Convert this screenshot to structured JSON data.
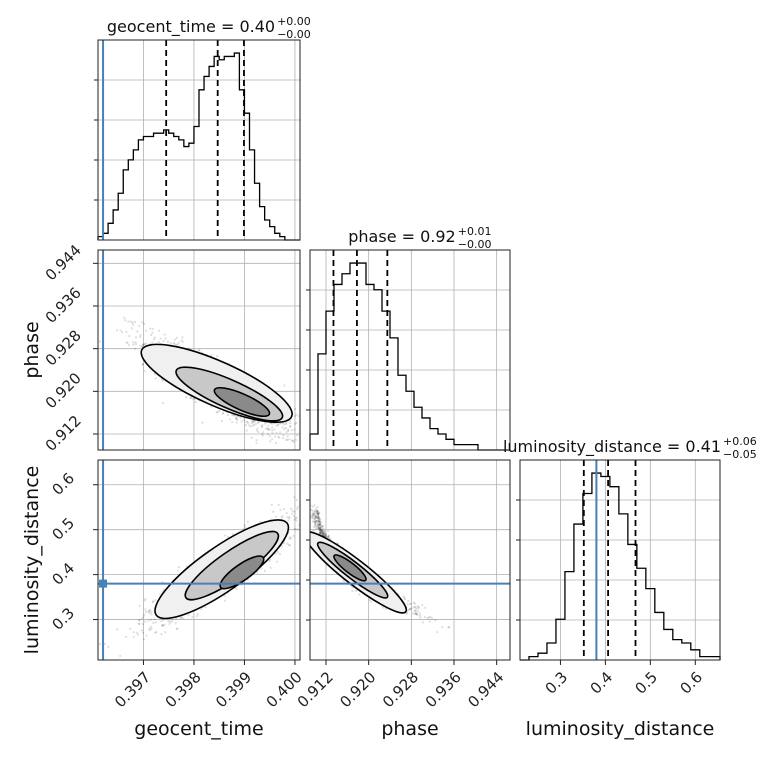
{
  "chart_data": {
    "type": "corner",
    "params": [
      {
        "name": "geocent_time",
        "range": [
          0.3961,
          0.4001
        ],
        "ticks": [
          0.397,
          0.398,
          0.399,
          0.4
        ],
        "tick_labels": [
          "0.397",
          "0.398",
          "0.399",
          "0.400"
        ],
        "truth": 0.3962,
        "quantiles": [
          0.39745,
          0.39847,
          0.39899
        ],
        "title_main": "geocent_time = 0.40",
        "title_plus": "+0.00",
        "title_minus": "−0.00",
        "hist": {
          "bin_edges": [
            0.3961,
            0.3962,
            0.3963,
            0.3964,
            0.3965,
            0.3966,
            0.3967,
            0.3968,
            0.3969,
            0.397,
            0.3971,
            0.3972,
            0.3973,
            0.3974,
            0.3975,
            0.3976,
            0.3977,
            0.3978,
            0.3979,
            0.398,
            0.3981,
            0.3982,
            0.3983,
            0.3984,
            0.3985,
            0.3986,
            0.3987,
            0.3988,
            0.3989,
            0.399,
            0.3991,
            0.3992,
            0.3993,
            0.3994,
            0.3995,
            0.3996,
            0.3997,
            0.3998,
            0.3999,
            0.4,
            0.4001
          ],
          "counts": [
            1,
            2,
            5,
            9,
            14,
            21,
            24,
            27,
            30,
            31,
            31,
            32,
            32,
            33,
            32,
            31,
            30,
            28,
            29,
            34,
            45,
            49,
            52,
            55,
            54,
            55,
            55,
            56,
            45,
            38,
            27,
            17,
            10,
            6,
            4,
            2,
            1,
            0,
            0,
            0
          ]
        }
      },
      {
        "name": "phase",
        "range": [
          0.909,
          0.9465
        ],
        "ticks": [
          0.912,
          0.92,
          0.928,
          0.936,
          0.944
        ],
        "tick_labels": [
          "0.912",
          "0.920",
          "0.928",
          "0.936",
          "0.944"
        ],
        "truth": null,
        "quantiles": [
          0.9134,
          0.9178,
          0.9235
        ],
        "title_main": "phase = 0.92",
        "title_plus": "+0.01",
        "title_minus": "−0.00",
        "hist": {
          "bin_edges": [
            0.909,
            0.9105,
            0.912,
            0.9135,
            0.915,
            0.9165,
            0.918,
            0.9195,
            0.921,
            0.9225,
            0.924,
            0.9255,
            0.927,
            0.9285,
            0.93,
            0.9315,
            0.933,
            0.9345,
            0.936,
            0.9375,
            0.939,
            0.9405,
            0.942,
            0.9435,
            0.945,
            0.9465
          ],
          "counts": [
            3,
            18,
            26,
            31,
            33,
            35,
            35,
            31,
            30,
            26,
            21,
            14,
            11,
            8,
            6,
            4,
            3,
            2,
            1,
            1,
            1,
            0,
            0,
            0,
            0
          ]
        }
      },
      {
        "name": "luminosity_distance",
        "range": [
          0.21,
          0.655
        ],
        "ticks": [
          0.3,
          0.4,
          0.5,
          0.6
        ],
        "tick_labels": [
          "0.3",
          "0.4",
          "0.5",
          "0.6"
        ],
        "truth": 0.38,
        "quantiles": [
          0.352,
          0.406,
          0.467
        ],
        "title_main": "luminosity_distance = 0.41",
        "title_plus": "+0.06",
        "title_minus": "−0.05",
        "hist": {
          "bin_edges": [
            0.21,
            0.23,
            0.25,
            0.27,
            0.29,
            0.31,
            0.33,
            0.35,
            0.37,
            0.39,
            0.41,
            0.43,
            0.45,
            0.47,
            0.49,
            0.51,
            0.53,
            0.55,
            0.57,
            0.59,
            0.61,
            0.63,
            0.655
          ],
          "counts": [
            0,
            1,
            2,
            5,
            12,
            26,
            40,
            49,
            55,
            54,
            51,
            43,
            34,
            27,
            21,
            14,
            9,
            6,
            5,
            3,
            1,
            1
          ]
        }
      }
    ],
    "truth_color": "#4682b4",
    "grid": true
  }
}
